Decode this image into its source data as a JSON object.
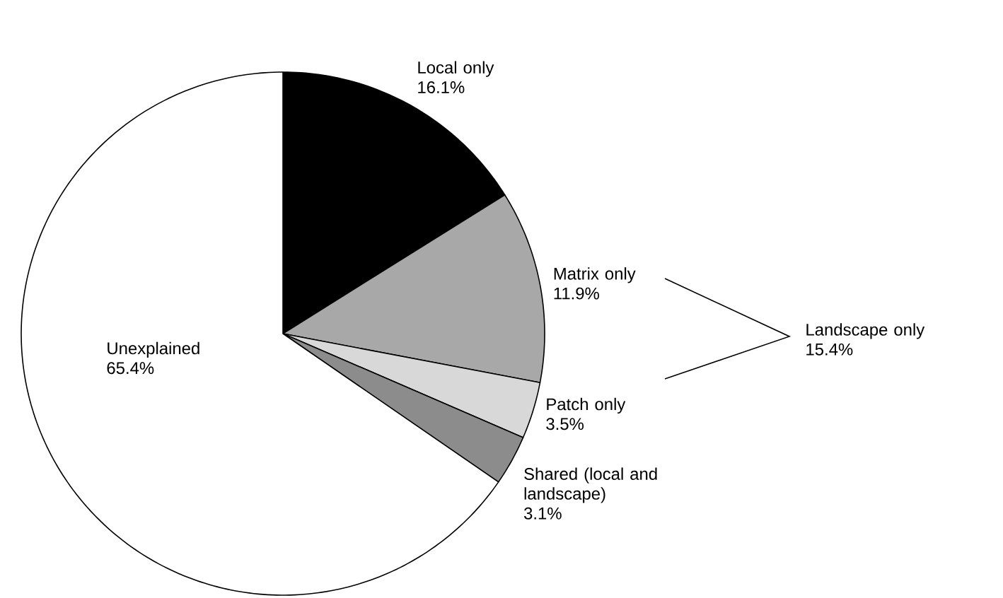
{
  "chart_data": {
    "type": "pie",
    "categories": [
      "Local only",
      "Matrix only",
      "Patch only",
      "Shared (local and landscape)",
      "Unexplained"
    ],
    "values": [
      16.1,
      11.9,
      3.5,
      3.1,
      65.4
    ],
    "value_labels": [
      "16.1%",
      "11.9%",
      "3.5%",
      "3.1%",
      "65.4%"
    ],
    "colors": [
      "#000000",
      "#a8a8a8",
      "#d8d8d8",
      "#8c8c8c",
      "#ffffff"
    ],
    "annotations": [
      "Landscape only 15.4%"
    ]
  }
}
